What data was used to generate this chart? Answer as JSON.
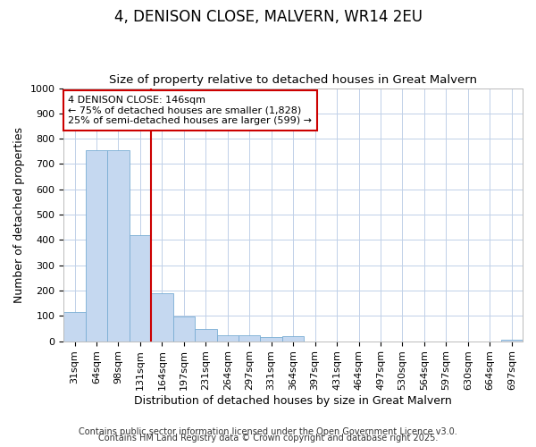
{
  "title": "4, DENISON CLOSE, MALVERN, WR14 2EU",
  "subtitle": "Size of property relative to detached houses in Great Malvern",
  "xlabel": "Distribution of detached houses by size in Great Malvern",
  "ylabel": "Number of detached properties",
  "categories": [
    "31sqm",
    "64sqm",
    "98sqm",
    "131sqm",
    "164sqm",
    "197sqm",
    "231sqm",
    "264sqm",
    "297sqm",
    "331sqm",
    "364sqm",
    "397sqm",
    "431sqm",
    "464sqm",
    "497sqm",
    "530sqm",
    "564sqm",
    "597sqm",
    "630sqm",
    "664sqm",
    "697sqm"
  ],
  "values": [
    116,
    755,
    755,
    420,
    190,
    97,
    48,
    22,
    22,
    15,
    20,
    0,
    0,
    0,
    0,
    0,
    0,
    0,
    0,
    0,
    5
  ],
  "bar_color": "#c5d8f0",
  "bar_edgecolor": "#7aadd4",
  "vline_x_index": 3,
  "vline_color": "#cc0000",
  "ylim": [
    0,
    1000
  ],
  "yticks": [
    0,
    100,
    200,
    300,
    400,
    500,
    600,
    700,
    800,
    900,
    1000
  ],
  "grid_color": "#c0d0e8",
  "background_color": "#ffffff",
  "annotation_text": "4 DENISON CLOSE: 146sqm\n← 75% of detached houses are smaller (1,828)\n25% of semi-detached houses are larger (599) →",
  "annotation_box_color": "#ffffff",
  "annotation_box_edgecolor": "#cc0000",
  "footer_lines": [
    "Contains HM Land Registry data © Crown copyright and database right 2025.",
    "Contains public sector information licensed under the Open Government Licence v3.0."
  ],
  "footer_fontsize": 7,
  "title_fontsize": 12,
  "subtitle_fontsize": 9.5,
  "axis_label_fontsize": 9,
  "tick_fontsize": 8,
  "annotation_fontsize": 8
}
